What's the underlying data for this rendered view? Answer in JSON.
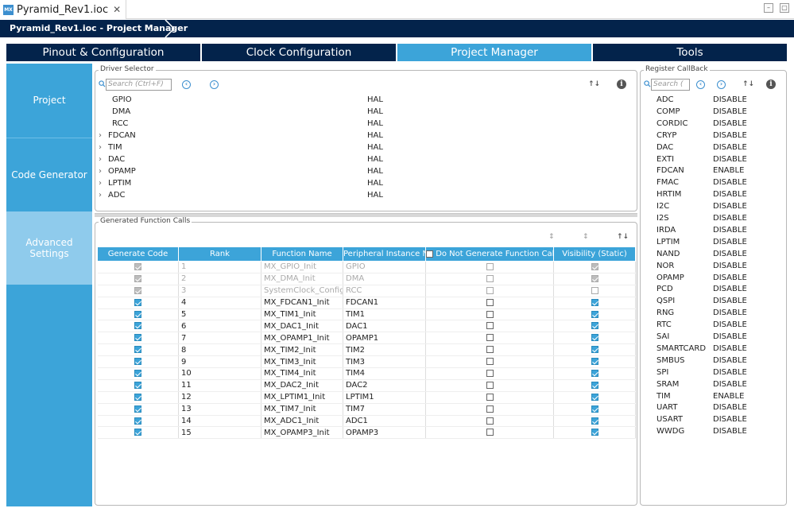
{
  "window": {
    "file_tab": "Pyramid_Rev1.ioc",
    "file_tab_icon": "MX",
    "breadcrumb": "Pyramid_Rev1.ioc - Project Manager"
  },
  "main_tabs": [
    "Pinout & Configuration",
    "Clock Configuration",
    "Project Manager",
    "Tools"
  ],
  "active_tab": "Project Manager",
  "left_nav": [
    "Project",
    "Code Generator",
    "Advanced Settings"
  ],
  "left_nav_selected": "Advanced Settings",
  "driver_selector": {
    "title": "Driver Selector",
    "search_placeholder": "Search (Ctrl+F)",
    "rows": [
      {
        "name": "GPIO",
        "value": "HAL",
        "expandable": false
      },
      {
        "name": "DMA",
        "value": "HAL",
        "expandable": false
      },
      {
        "name": "RCC",
        "value": "HAL",
        "expandable": false
      },
      {
        "name": "FDCAN",
        "value": "HAL",
        "expandable": true
      },
      {
        "name": "TIM",
        "value": "HAL",
        "expandable": true
      },
      {
        "name": "DAC",
        "value": "HAL",
        "expandable": true
      },
      {
        "name": "OPAMP",
        "value": "HAL",
        "expandable": true
      },
      {
        "name": "LPTIM",
        "value": "HAL",
        "expandable": true
      },
      {
        "name": "ADC",
        "value": "HAL",
        "expandable": true
      }
    ]
  },
  "generated_calls": {
    "title": "Generated Function Calls",
    "headers": [
      "Generate Code",
      "Rank",
      "Function Name",
      "Peripheral Instance N...",
      "Do Not Generate Function Call",
      "Visibility (Static)"
    ],
    "rows": [
      {
        "gen": true,
        "rank": "1",
        "fn": "MX_GPIO_Init",
        "inst": "GPIO",
        "nogen": false,
        "vis": true,
        "disabled": true
      },
      {
        "gen": true,
        "rank": "2",
        "fn": "MX_DMA_Init",
        "inst": "DMA",
        "nogen": false,
        "vis": true,
        "disabled": true
      },
      {
        "gen": true,
        "rank": "3",
        "fn": "SystemClock_Config",
        "inst": "RCC",
        "nogen": false,
        "vis": false,
        "disabled": true
      },
      {
        "gen": true,
        "rank": "4",
        "fn": "MX_FDCAN1_Init",
        "inst": "FDCAN1",
        "nogen": false,
        "vis": true,
        "disabled": false
      },
      {
        "gen": true,
        "rank": "5",
        "fn": "MX_TIM1_Init",
        "inst": "TIM1",
        "nogen": false,
        "vis": true,
        "disabled": false
      },
      {
        "gen": true,
        "rank": "6",
        "fn": "MX_DAC1_Init",
        "inst": "DAC1",
        "nogen": false,
        "vis": true,
        "disabled": false
      },
      {
        "gen": true,
        "rank": "7",
        "fn": "MX_OPAMP1_Init",
        "inst": "OPAMP1",
        "nogen": false,
        "vis": true,
        "disabled": false
      },
      {
        "gen": true,
        "rank": "8",
        "fn": "MX_TIM2_Init",
        "inst": "TIM2",
        "nogen": false,
        "vis": true,
        "disabled": false
      },
      {
        "gen": true,
        "rank": "9",
        "fn": "MX_TIM3_Init",
        "inst": "TIM3",
        "nogen": false,
        "vis": true,
        "disabled": false
      },
      {
        "gen": true,
        "rank": "10",
        "fn": "MX_TIM4_Init",
        "inst": "TIM4",
        "nogen": false,
        "vis": true,
        "disabled": false
      },
      {
        "gen": true,
        "rank": "11",
        "fn": "MX_DAC2_Init",
        "inst": "DAC2",
        "nogen": false,
        "vis": true,
        "disabled": false
      },
      {
        "gen": true,
        "rank": "12",
        "fn": "MX_LPTIM1_Init",
        "inst": "LPTIM1",
        "nogen": false,
        "vis": true,
        "disabled": false
      },
      {
        "gen": true,
        "rank": "13",
        "fn": "MX_TIM7_Init",
        "inst": "TIM7",
        "nogen": false,
        "vis": true,
        "disabled": false
      },
      {
        "gen": true,
        "rank": "14",
        "fn": "MX_ADC1_Init",
        "inst": "ADC1",
        "nogen": false,
        "vis": true,
        "disabled": false
      },
      {
        "gen": true,
        "rank": "15",
        "fn": "MX_OPAMP3_Init",
        "inst": "OPAMP3",
        "nogen": false,
        "vis": true,
        "disabled": false
      }
    ]
  },
  "register_callback": {
    "title": "Register CallBack",
    "search_placeholder": "Search (",
    "rows": [
      {
        "name": "ADC",
        "value": "DISABLE"
      },
      {
        "name": "COMP",
        "value": "DISABLE"
      },
      {
        "name": "CORDIC",
        "value": "DISABLE"
      },
      {
        "name": "CRYP",
        "value": "DISABLE"
      },
      {
        "name": "DAC",
        "value": "DISABLE"
      },
      {
        "name": "EXTI",
        "value": "DISABLE"
      },
      {
        "name": "FDCAN",
        "value": "ENABLE"
      },
      {
        "name": "FMAC",
        "value": "DISABLE"
      },
      {
        "name": "HRTIM",
        "value": "DISABLE"
      },
      {
        "name": "I2C",
        "value": "DISABLE"
      },
      {
        "name": "I2S",
        "value": "DISABLE"
      },
      {
        "name": "IRDA",
        "value": "DISABLE"
      },
      {
        "name": "LPTIM",
        "value": "DISABLE"
      },
      {
        "name": "NAND",
        "value": "DISABLE"
      },
      {
        "name": "NOR",
        "value": "DISABLE"
      },
      {
        "name": "OPAMP",
        "value": "DISABLE"
      },
      {
        "name": "PCD",
        "value": "DISABLE"
      },
      {
        "name": "QSPI",
        "value": "DISABLE"
      },
      {
        "name": "RNG",
        "value": "DISABLE"
      },
      {
        "name": "RTC",
        "value": "DISABLE"
      },
      {
        "name": "SAI",
        "value": "DISABLE"
      },
      {
        "name": "SMARTCARD",
        "value": "DISABLE"
      },
      {
        "name": "SMBUS",
        "value": "DISABLE"
      },
      {
        "name": "SPI",
        "value": "DISABLE"
      },
      {
        "name": "SRAM",
        "value": "DISABLE"
      },
      {
        "name": "TIM",
        "value": "ENABLE"
      },
      {
        "name": "UART",
        "value": "DISABLE"
      },
      {
        "name": "USART",
        "value": "DISABLE"
      },
      {
        "name": "WWDG",
        "value": "DISABLE"
      }
    ]
  },
  "colors": {
    "navy": "#03234b",
    "accent": "#3ca4d9",
    "nav_selected": "#8fcbec"
  }
}
